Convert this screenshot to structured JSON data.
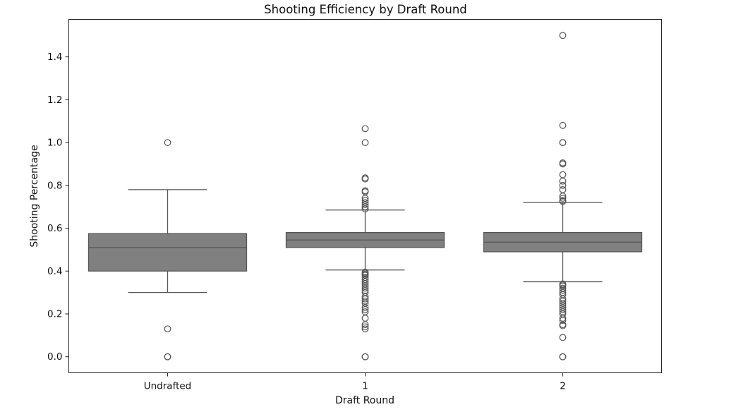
{
  "chart_data": {
    "type": "box",
    "title": "Shooting Efficiency by Draft Round",
    "xlabel": "Draft Round",
    "ylabel": "Shooting Percentage",
    "ylim": [
      -0.075,
      1.575
    ],
    "yticks": [
      0.0,
      0.2,
      0.4,
      0.6,
      0.8,
      1.0,
      1.2,
      1.4
    ],
    "ytick_labels": [
      "0.0",
      "0.2",
      "0.4",
      "0.6",
      "0.8",
      "1.0",
      "1.2",
      "1.4"
    ],
    "grid": false,
    "legend": "none",
    "box_color": "#808080",
    "line_color": "#555555",
    "categories": [
      "Undrafted",
      "1",
      "2"
    ],
    "boxes": [
      {
        "category": "Undrafted",
        "q1": 0.4,
        "median": 0.51,
        "q3": 0.575,
        "whisker_low": 0.3,
        "whisker_high": 0.78,
        "outliers": [
          1.0,
          0.13,
          0.0,
          0.0
        ]
      },
      {
        "category": "1",
        "q1": 0.51,
        "median": 0.545,
        "q3": 0.58,
        "whisker_low": 0.405,
        "whisker_high": 0.685,
        "outliers": [
          1.065,
          1.0,
          0.835,
          0.83,
          0.775,
          0.77,
          0.74,
          0.73,
          0.72,
          0.71,
          0.7,
          0.69,
          0.395,
          0.39,
          0.385,
          0.38,
          0.37,
          0.36,
          0.35,
          0.34,
          0.33,
          0.32,
          0.31,
          0.3,
          0.28,
          0.27,
          0.26,
          0.25,
          0.23,
          0.22,
          0.21,
          0.18,
          0.15,
          0.14,
          0.13,
          0.0,
          0.0
        ]
      },
      {
        "category": "2",
        "q1": 0.49,
        "median": 0.535,
        "q3": 0.58,
        "whisker_low": 0.35,
        "whisker_high": 0.72,
        "outliers": [
          1.5,
          1.08,
          1.0,
          1.0,
          0.905,
          0.9,
          0.85,
          0.82,
          0.8,
          0.78,
          0.75,
          0.74,
          0.73,
          0.725,
          0.34,
          0.335,
          0.33,
          0.32,
          0.31,
          0.3,
          0.29,
          0.27,
          0.26,
          0.25,
          0.24,
          0.23,
          0.22,
          0.21,
          0.2,
          0.18,
          0.17,
          0.15,
          0.145,
          0.09,
          0.0,
          0.0
        ]
      }
    ]
  }
}
